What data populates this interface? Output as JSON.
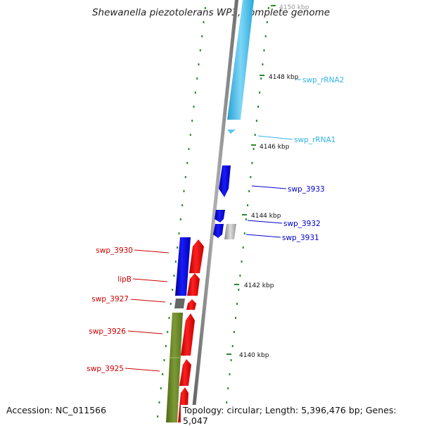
{
  "title": "Shewanella piezotolerans WP3, complete genome",
  "accession": "Accession: NC_011566",
  "topology": "Topology: circular; Length: 5,396,476 bp; Genes: 5,047",
  "ticks": [
    "4150 kbp",
    "4148 kbp",
    "4146 kbp",
    "4144 kbp",
    "4142 kbp",
    "4140 kbp"
  ],
  "feature_labels": [
    {
      "text": "swp_rRNA2",
      "color": "#33b5e5"
    },
    {
      "text": "swp_rRNA1",
      "color": "#33b5e5"
    },
    {
      "text": "swp_3933",
      "color": "#0000cc"
    },
    {
      "text": "swp_3932",
      "color": "#0000cc"
    },
    {
      "text": "swp_3931",
      "color": "#0000cc"
    },
    {
      "text": "swp_3930",
      "color": "#cc0000"
    },
    {
      "text": "lipB",
      "color": "#cc0000"
    },
    {
      "text": "swp_3927",
      "color": "#cc0000"
    },
    {
      "text": "swp_3926",
      "color": "#cc0000"
    },
    {
      "text": "swp_3925",
      "color": "#cc0000"
    }
  ],
  "colors": {
    "rrna": "#5bc8f2",
    "forward_cds": "#1a1aff",
    "reverse_cds": "#ff1a1a",
    "pseudo": "#bbbbbb",
    "other": "#6b8e23",
    "backbone": "#8c8c8c",
    "tick_mark": "#2a8a2a"
  }
}
